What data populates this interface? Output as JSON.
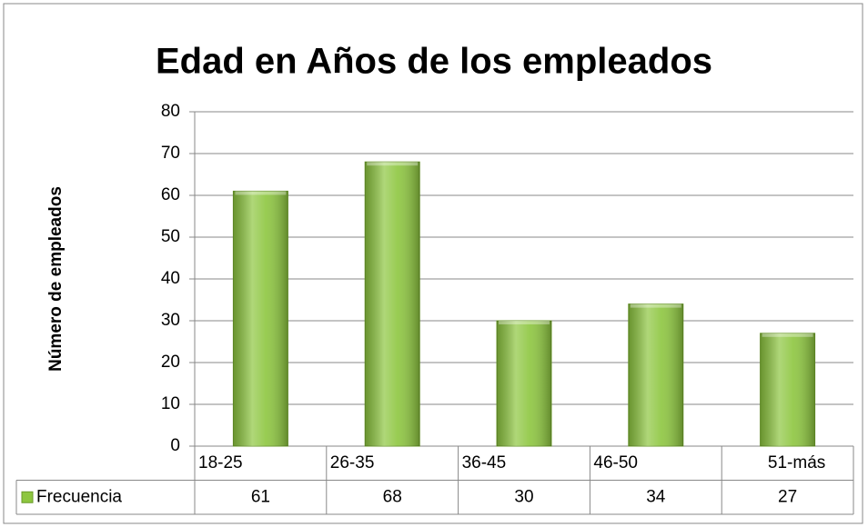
{
  "chart_data": {
    "type": "bar",
    "title": "Edad en Años de los empleados",
    "y_label": "Número de empleados",
    "categories": [
      "18-25",
      "26-35",
      "36-45",
      "46-50",
      "51-más"
    ],
    "series": [
      {
        "name": "Frecuencia",
        "color": "#8dc63f",
        "values": [
          61,
          68,
          30,
          34,
          27
        ]
      }
    ],
    "ylim": [
      0,
      80
    ],
    "yticks": [
      0,
      10,
      20,
      30,
      40,
      50,
      60,
      70,
      80
    ],
    "grid": true
  }
}
